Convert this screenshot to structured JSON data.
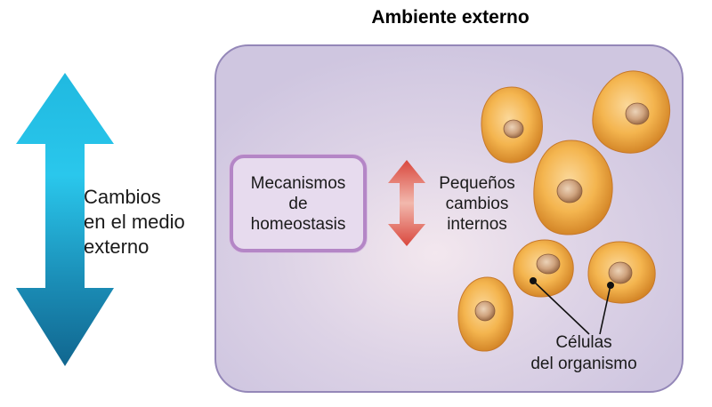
{
  "title": "Ambiente externo",
  "mechanisms_box": {
    "lines": [
      "Mecanismos",
      "de",
      "homeostasis"
    ]
  },
  "external_changes_label": {
    "lines": [
      "Cambios",
      "en el medio",
      "externo"
    ]
  },
  "small_changes_label": {
    "lines": [
      "Pequeños",
      "cambios",
      "internos"
    ]
  },
  "cells_label": {
    "lines": [
      "Células",
      "del organismo"
    ]
  },
  "colors": {
    "external_arrow_light": "#2ac7ec",
    "external_arrow_dark": "#11668f",
    "internal_arrow": "#e25a4e",
    "box_border": "#9487b8",
    "mechanism_border": "#b486c6",
    "cell_fill": "#f0a83c",
    "nucleus_fill": "#c9a07a"
  },
  "icons": [
    "double-arrow-vertical",
    "cell"
  ]
}
